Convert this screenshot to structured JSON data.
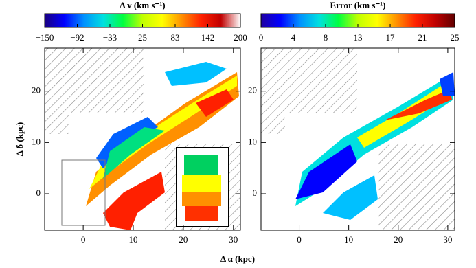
{
  "chart_data": [
    {
      "type": "map",
      "title": "Δ v (km s⁻¹)",
      "xlabel": "Δ α (kpc)",
      "ylabel": "Δ δ (kpc)",
      "clim": [
        -150,
        200
      ],
      "colorbar_ticks": [
        {
          "value": -150,
          "label": "−150"
        },
        {
          "value": -91.67,
          "label": "−92"
        },
        {
          "value": -33.33,
          "label": "−33"
        },
        25,
        {
          "value": 83.33,
          "label": "83"
        },
        {
          "value": 141.67,
          "label": "142"
        },
        200
      ],
      "colormap": [
        "#1a0080",
        "#0000ff",
        "#0090ff",
        "#00e0e0",
        "#00ff40",
        "#c0ff00",
        "#ffff00",
        "#ff9000",
        "#ff2000",
        "#c00000",
        "#ffffff"
      ],
      "xlim": [
        -7.7,
        31.4
      ],
      "ylim": [
        -7.1,
        28.4
      ],
      "xticks": [
        0,
        10,
        20,
        30
      ],
      "yticks": [
        0,
        10,
        20
      ]
    },
    {
      "type": "map",
      "title": "Error (km s⁻¹)",
      "clim": [
        0,
        25
      ],
      "colorbar_ticks": [
        0,
        {
          "value": 4.17,
          "label": "4"
        },
        {
          "value": 8.33,
          "label": "8"
        },
        {
          "value": 12.5,
          "label": "13"
        },
        {
          "value": 16.67,
          "label": "17"
        },
        {
          "value": 20.83,
          "label": "21"
        },
        25
      ],
      "colormap": [
        "#2000a0",
        "#0000ff",
        "#0090ff",
        "#00e0e0",
        "#00ff40",
        "#c0ff00",
        "#ffff00",
        "#ff9000",
        "#ff2000",
        "#c00000",
        "#600000"
      ],
      "xlim": [
        -7.7,
        31.4
      ],
      "ylim": [
        -7.1,
        28.4
      ],
      "xticks": [
        0,
        10,
        20,
        30
      ],
      "yticks": [
        0,
        10,
        20
      ]
    }
  ]
}
